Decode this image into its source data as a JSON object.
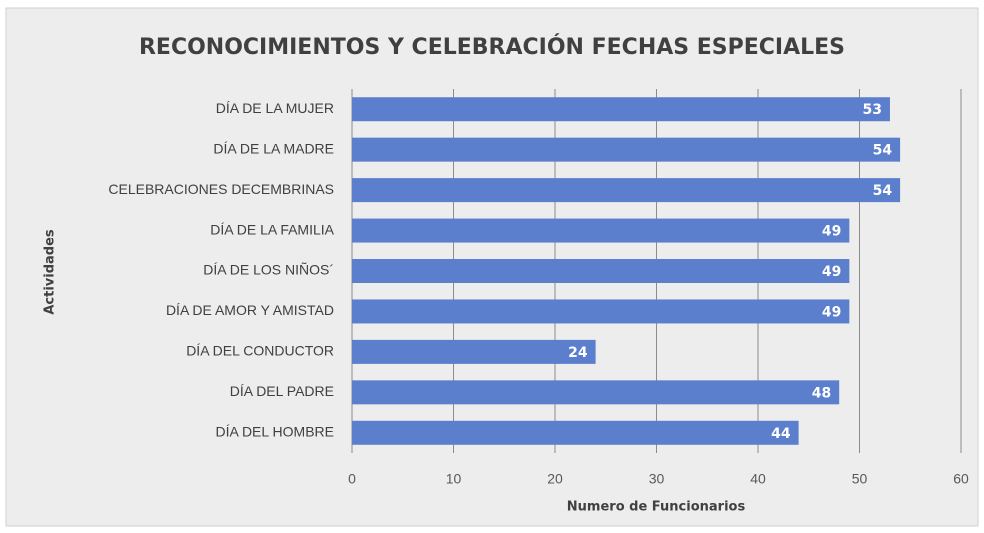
{
  "chart_data": {
    "type": "bar",
    "orientation": "horizontal",
    "title": "RECONOCIMIENTOS Y CELEBRACIÓN FECHAS ESPECIALES",
    "x_label": "Numero de Funcionarios",
    "y_label": "Actividades",
    "categories": [
      "DÍA DE LA MUJER",
      "DÍA DE LA MADRE",
      "CELEBRACIONES DECEMBRINAS",
      "DÍA DE LA FAMILIA",
      "DÍA DE LOS NIÑOS´",
      "DÍA DE AMOR Y AMISTAD",
      "DÍA DEL CONDUCTOR",
      "DÍA DEL PADRE",
      "DÍA DEL HOMBRE"
    ],
    "values": [
      53,
      54,
      54,
      49,
      49,
      49,
      24,
      48,
      44
    ],
    "color": "#5b7fcd",
    "xlim": [
      0,
      60
    ],
    "xticks": [
      0,
      10,
      20,
      30,
      40,
      50,
      60
    ],
    "grid": true
  }
}
